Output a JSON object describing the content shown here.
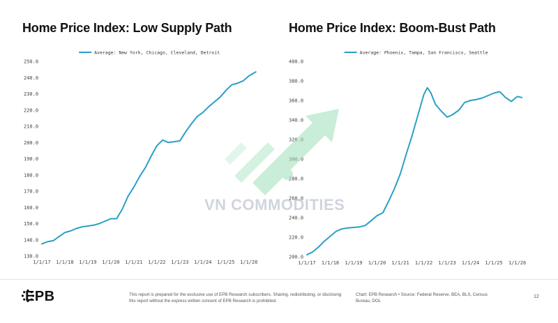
{
  "chart_data": [
    {
      "type": "line",
      "title": "Home Price Index: Low Supply Path",
      "xlabel": "",
      "ylabel": "",
      "ylim": [
        130,
        250
      ],
      "y_ticks": [
        "130.0",
        "140.0",
        "150.0",
        "160.0",
        "170.0",
        "180.0",
        "190.0",
        "200.0",
        "210.0",
        "220.0",
        "230.0",
        "240.0",
        "250.0"
      ],
      "x_ticks": [
        "1/1/17",
        "1/1/18",
        "1/1/19",
        "1/1/20",
        "1/1/21",
        "1/1/22",
        "1/1/23",
        "1/1/24",
        "1/1/25",
        "1/1/26"
      ],
      "legend": {
        "position": "top-center"
      },
      "grid": false,
      "series": [
        {
          "name": "Average: New York, Chicago, Cleveland, Detroit",
          "color": "#2a9fc6",
          "x": [
            2017.0,
            2017.25,
            2017.5,
            2017.75,
            2018.0,
            2018.25,
            2018.5,
            2018.75,
            2019.0,
            2019.25,
            2019.5,
            2019.75,
            2020.0,
            2020.25,
            2020.5,
            2020.75,
            2021.0,
            2021.25,
            2021.5,
            2021.75,
            2022.0,
            2022.25,
            2022.5,
            2022.75,
            2023.0,
            2023.25,
            2023.5,
            2023.75,
            2024.0,
            2024.25,
            2024.5,
            2024.75,
            2025.0,
            2025.25,
            2025.5,
            2025.75,
            2026.0,
            2026.3
          ],
          "y": [
            137.5,
            138.8,
            139.5,
            142.0,
            144.5,
            145.5,
            147.0,
            148.0,
            148.5,
            149.0,
            150.0,
            151.5,
            153.0,
            153.0,
            159.0,
            167.0,
            172.5,
            179.0,
            184.5,
            191.5,
            198.0,
            201.5,
            200.0,
            200.5,
            201.0,
            206.5,
            211.5,
            216.0,
            218.5,
            222.0,
            225.0,
            228.0,
            232.0,
            235.5,
            236.5,
            238.0,
            241.0,
            243.5
          ]
        }
      ]
    },
    {
      "type": "line",
      "title": "Home Price Index: Boom-Bust Path",
      "xlabel": "",
      "ylabel": "",
      "ylim": [
        200,
        400
      ],
      "y_ticks": [
        "200.0",
        "220.0",
        "240.0",
        "260.0",
        "280.0",
        "300.0",
        "320.0",
        "340.0",
        "360.0",
        "380.0",
        "400.0"
      ],
      "x_ticks": [
        "1/1/17",
        "1/1/18",
        "1/1/19",
        "1/1/20",
        "1/1/21",
        "1/1/22",
        "1/1/23",
        "1/1/24",
        "1/1/25",
        "1/1/26"
      ],
      "legend": {
        "position": "top-center"
      },
      "grid": false,
      "series": [
        {
          "name": "Average: Phoenix, Tampa, San Francisco, Seattle",
          "color": "#2a9fc6",
          "x": [
            2017.0,
            2017.25,
            2017.5,
            2017.75,
            2018.0,
            2018.25,
            2018.5,
            2018.75,
            2019.0,
            2019.25,
            2019.5,
            2019.75,
            2020.0,
            2020.25,
            2020.5,
            2020.75,
            2021.0,
            2021.25,
            2021.5,
            2021.75,
            2022.0,
            2022.15,
            2022.3,
            2022.5,
            2022.75,
            2023.0,
            2023.2,
            2023.5,
            2023.75,
            2024.0,
            2024.25,
            2024.5,
            2024.75,
            2025.0,
            2025.25,
            2025.5,
            2025.75,
            2026.0,
            2026.2
          ],
          "y": [
            202.0,
            205.0,
            210.0,
            216.0,
            221.0,
            226.0,
            228.5,
            229.5,
            230.0,
            230.5,
            232.0,
            237.0,
            242.0,
            245.0,
            257.0,
            270.0,
            285.0,
            305.0,
            324.0,
            345.0,
            366.0,
            373.0,
            368.0,
            356.0,
            349.0,
            343.0,
            345.0,
            350.0,
            358.0,
            360.0,
            361.0,
            362.5,
            365.0,
            367.5,
            369.0,
            363.0,
            359.0,
            364.0,
            363.0
          ]
        }
      ]
    }
  ],
  "watermark": "VN COMMODITIES",
  "footer": {
    "logo": "EPB",
    "disclaimer": "This report is prepared for the exclusive use of EPB Research subscribers. Sharing, redistributing, or disclosing this report without the express written consent of EPB Research is prohibited.",
    "source": "Chart: EPB Research • Source: Federal Reserve, BEA, BLS, Census Bureau, DOL",
    "page": "12"
  },
  "colors": {
    "line": "#2a9fc6",
    "watermark": "#8fd9b0"
  }
}
